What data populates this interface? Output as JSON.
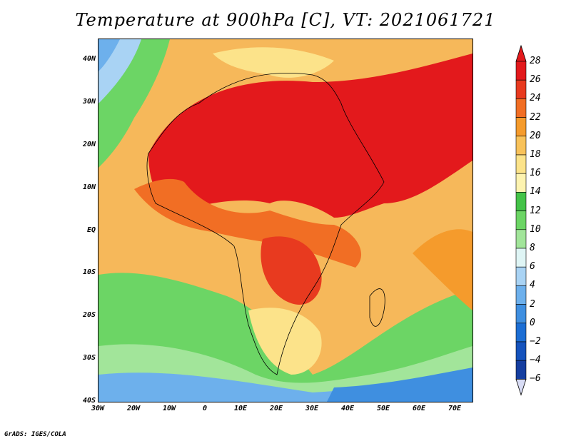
{
  "title": "Temperature at 900hPa [C], VT: 2021061721",
  "credit": "GrADS: IGES/COLA",
  "map": {
    "lat_labels": [
      "40N",
      "30N",
      "20N",
      "10N",
      "EQ",
      "10S",
      "20S",
      "30S",
      "40S"
    ],
    "lon_labels": [
      "30W",
      "20W",
      "10W",
      "0",
      "10E",
      "20E",
      "30E",
      "40E",
      "50E",
      "60E",
      "70E"
    ]
  },
  "colorbar": {
    "labels": [
      "28",
      "26",
      "24",
      "22",
      "20",
      "18",
      "16",
      "14",
      "12",
      "10",
      "8",
      "6",
      "4",
      "2",
      "0",
      "−2",
      "−4",
      "−6"
    ],
    "colors": [
      "#e3191c",
      "#e83a1f",
      "#f16e24",
      "#f59b2c",
      "#f8c25a",
      "#fce38a",
      "#fdf3b0",
      "#44c348",
      "#6cd565",
      "#a2e59a",
      "#dff5f5",
      "#a9d3f4",
      "#6db0ec",
      "#3f8fe0",
      "#1c6ed4",
      "#1553bd",
      "#153ea0",
      "#101a72"
    ]
  }
}
